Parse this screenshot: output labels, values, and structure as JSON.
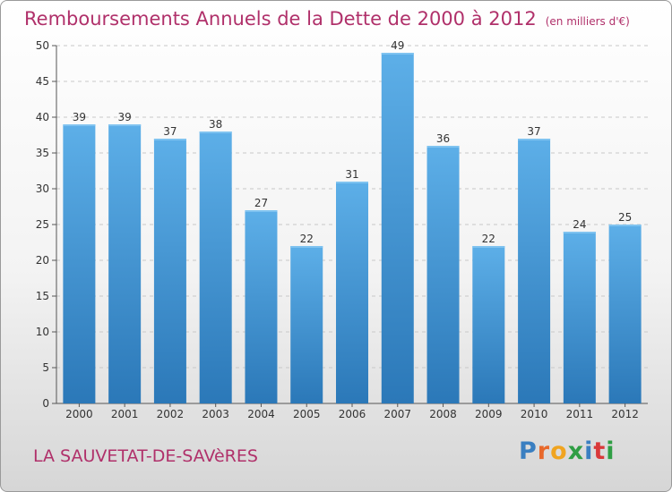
{
  "chart_data": {
    "type": "bar",
    "title": "Remboursements Annuels de la Dette de 2000 à 2012",
    "subtitle": "(en milliers d'€)",
    "categories": [
      "2000",
      "2001",
      "2002",
      "2003",
      "2004",
      "2005",
      "2006",
      "2007",
      "2008",
      "2009",
      "2010",
      "2011",
      "2012"
    ],
    "values": [
      39,
      39,
      37,
      38,
      27,
      22,
      31,
      49,
      36,
      22,
      37,
      24,
      25
    ],
    "ylim": [
      0,
      50
    ],
    "yticks": [
      0,
      5,
      10,
      15,
      20,
      25,
      30,
      35,
      40,
      45,
      50
    ],
    "xlabel": "",
    "ylabel": "",
    "grid": true
  },
  "footer": {
    "place": "LA SAUVETAT-DE-SAVèRES",
    "logo_letters": [
      "P",
      "r",
      "o",
      "x",
      "i",
      "t",
      "i"
    ],
    "logo_colors": [
      "#3a7fc1",
      "#e8682a",
      "#f0a420",
      "#2f9e44",
      "#3a7fc1",
      "#d9393a",
      "#2f9e44"
    ]
  },
  "colors": {
    "title": "#b0306a",
    "bar_top": "#5dafe8",
    "bar_bottom": "#2b78b8",
    "grid": "#c8c8c8"
  }
}
